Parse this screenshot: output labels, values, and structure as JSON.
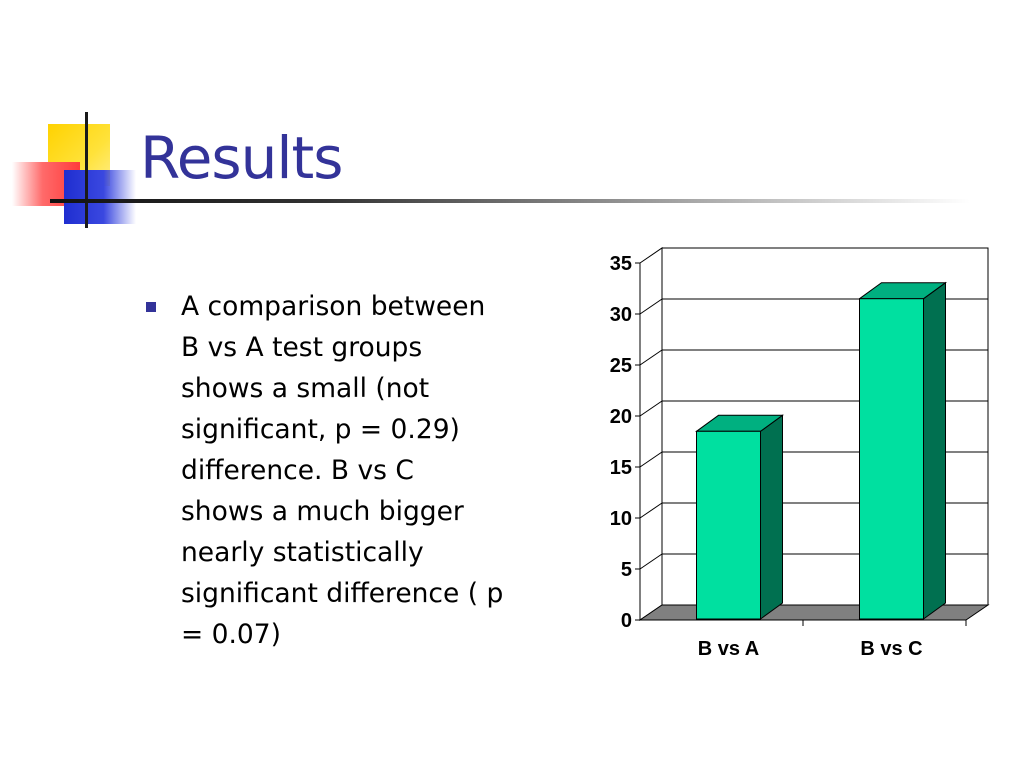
{
  "slide": {
    "title": "Results",
    "bullets": [
      "A comparison between\nB vs A test groups\nshows a small (not\nsignificant, p = 0.29)\ndifference.  B vs C\nshows a much bigger\nnearly statistically\nsignificant difference ( p\n= 0.07)"
    ]
  },
  "colors": {
    "title": "#333399",
    "bullet": "#333399",
    "bar_front": "#00e0a0",
    "bar_side": "#007050",
    "bar_top": "#00b080",
    "floor": "#808080"
  },
  "chart_data": {
    "type": "bar",
    "categories": [
      "B vs A",
      "B vs C"
    ],
    "values": [
      18.5,
      31.5
    ],
    "ylim": [
      0,
      35
    ],
    "yticks": [
      "0",
      "5",
      "10",
      "15",
      "20",
      "25",
      "30",
      "35"
    ],
    "grid": true,
    "legend": "none",
    "style": "3d"
  }
}
